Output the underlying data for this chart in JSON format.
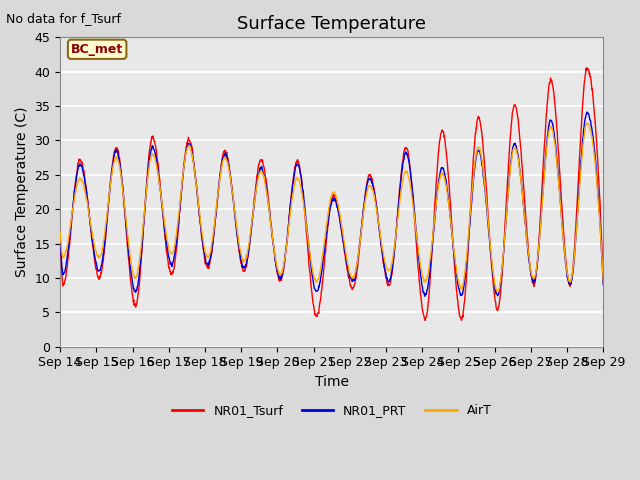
{
  "title": "Surface Temperature",
  "xlabel": "Time",
  "ylabel": "Surface Temperature (C)",
  "note": "No data for f_Tsurf",
  "annotation_label": "BC_met",
  "ylim": [
    0,
    45
  ],
  "x_tick_labels": [
    "Sep 14",
    "Sep 15",
    "Sep 16",
    "Sep 17",
    "Sep 18",
    "Sep 19",
    "Sep 20",
    "Sep 21",
    "Sep 22",
    "Sep 23",
    "Sep 24",
    "Sep 25",
    "Sep 26",
    "Sep 27",
    "Sep 28",
    "Sep 29"
  ],
  "legend_entries": [
    "NR01_Tsurf",
    "NR01_PRT",
    "AirT"
  ],
  "line_colors": [
    "#ff0000",
    "#0000dd",
    "#ffaa00"
  ],
  "axes_facecolor": "#e8e8e8",
  "grid_color": "#ffffff",
  "title_fontsize": 13,
  "label_fontsize": 10,
  "tick_fontsize": 9
}
